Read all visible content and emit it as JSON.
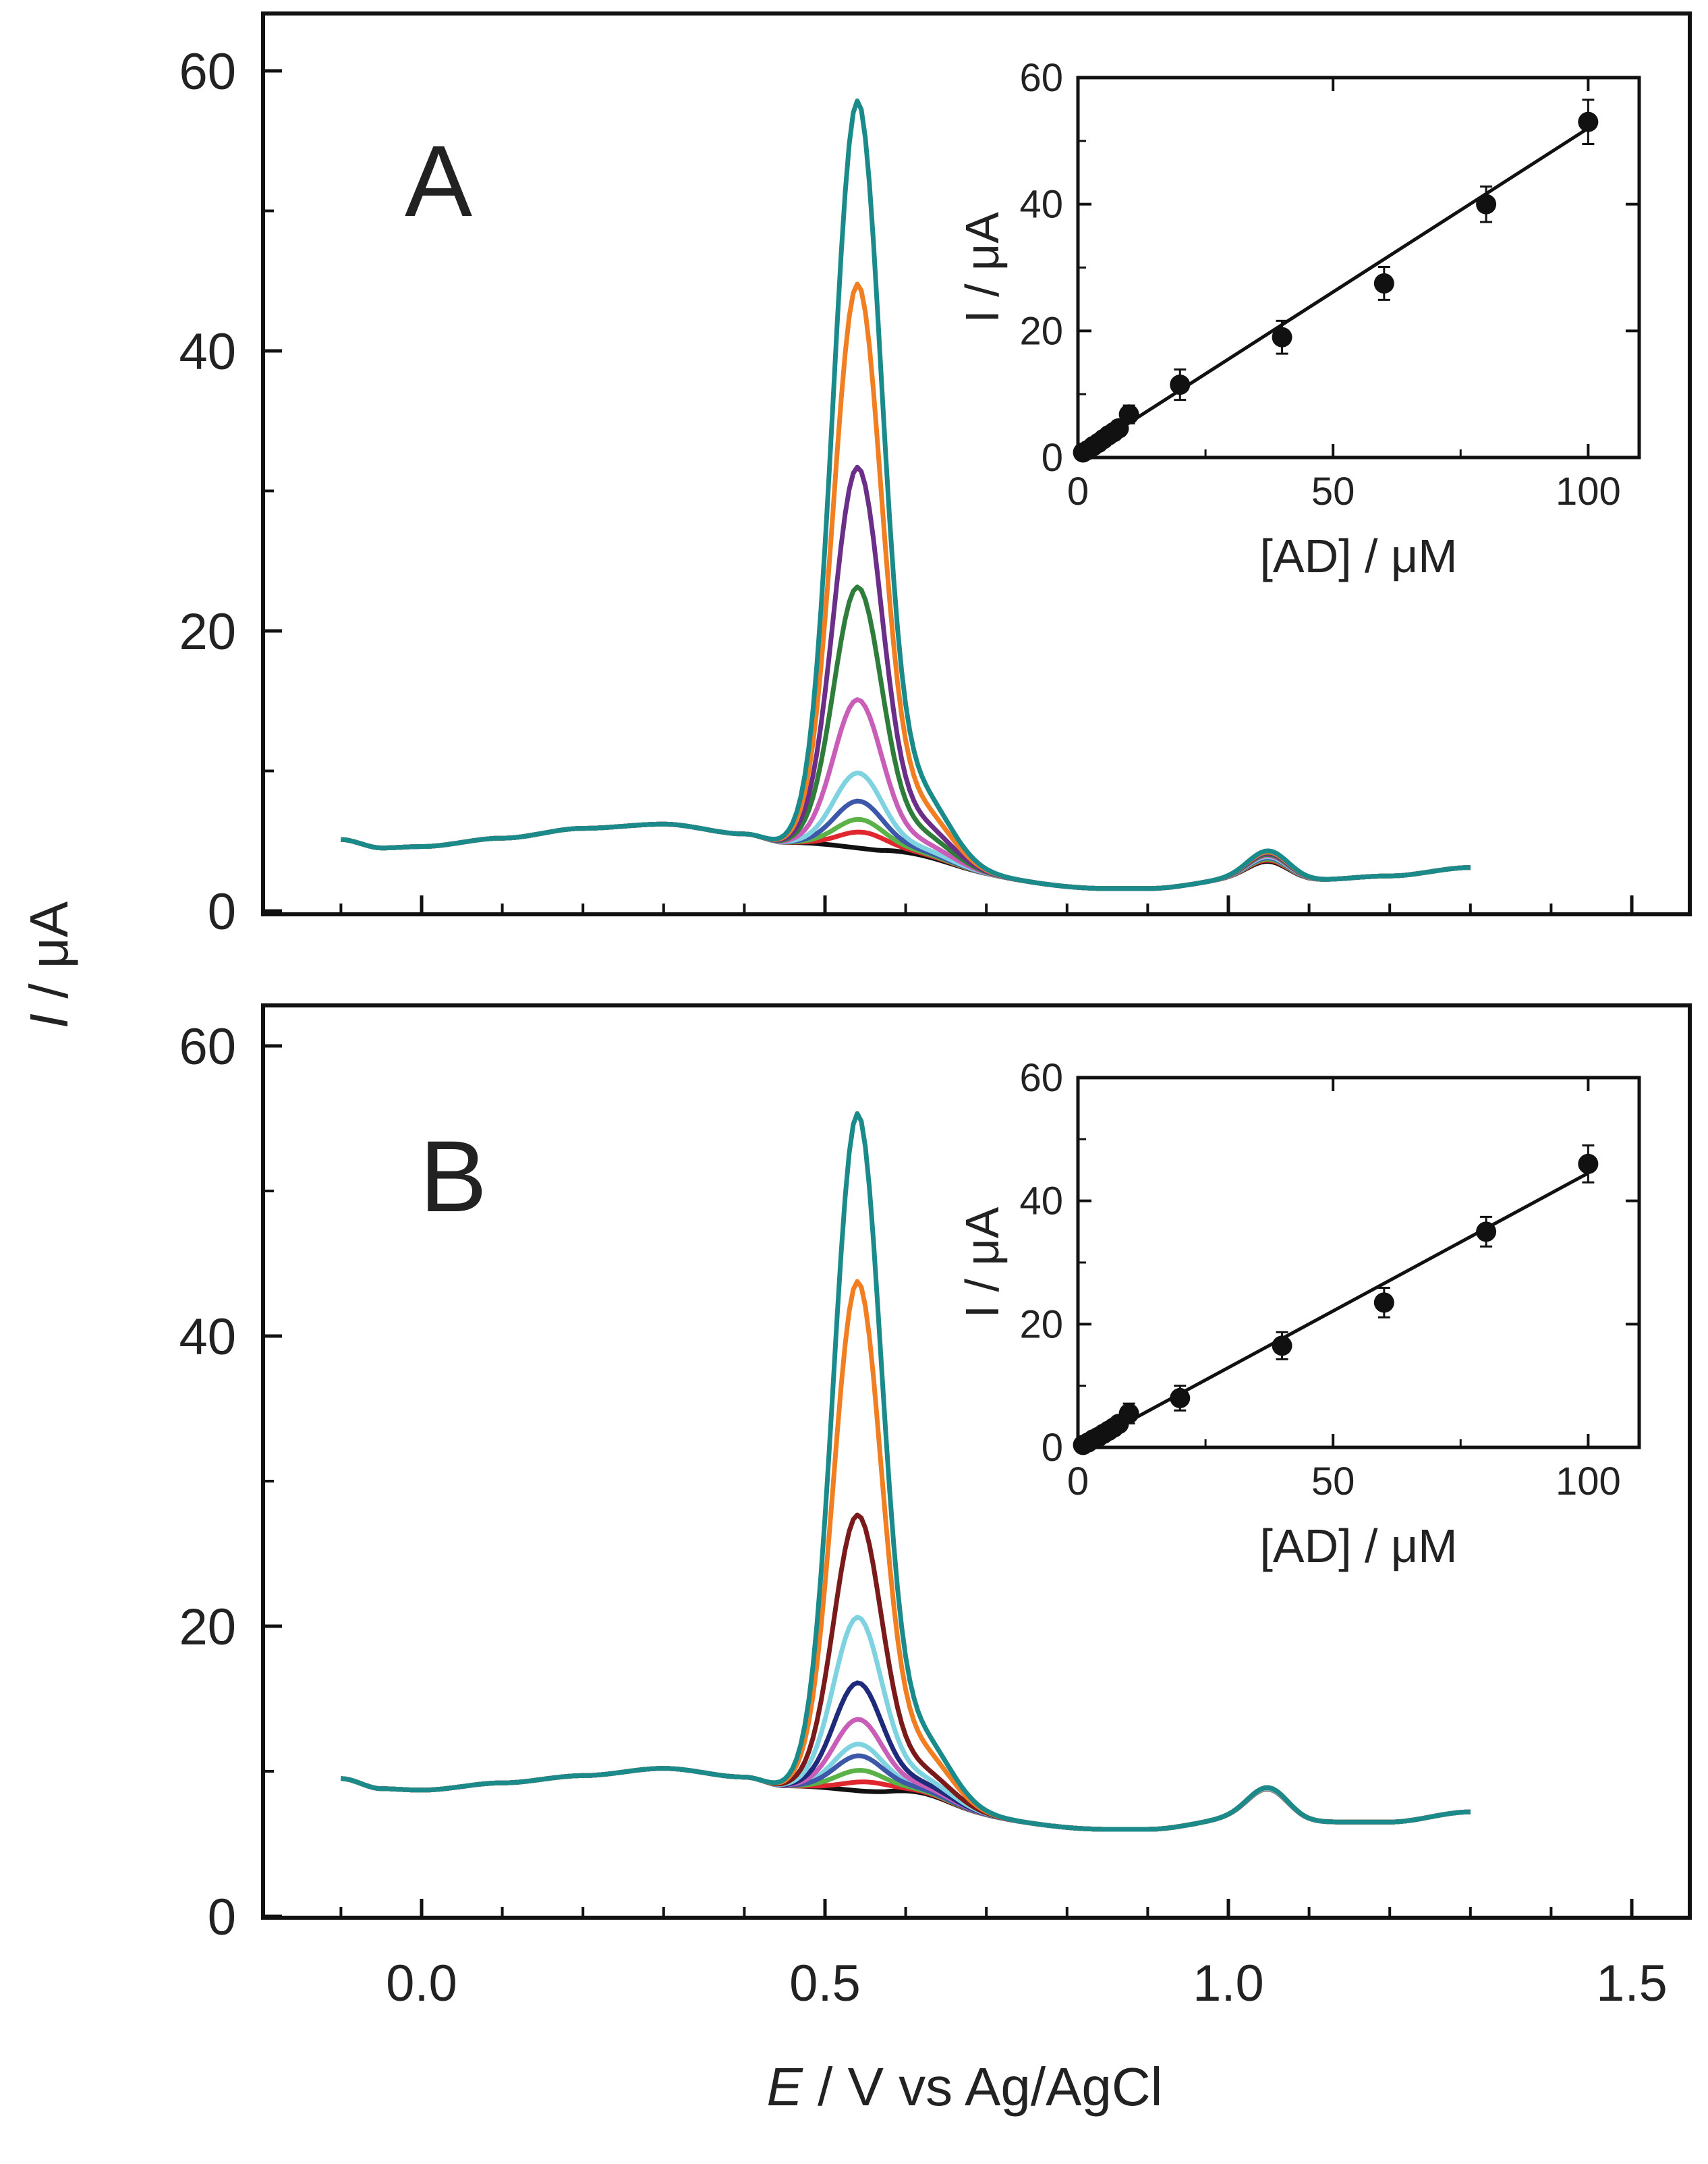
{
  "figure": {
    "ylabel_var": "I",
    "ylabel_unit": " / μA",
    "xlabel_var": "E",
    "xlabel_unit": " / V vs Ag/AgCl"
  },
  "chart_data": [
    {
      "type": "line",
      "panel": "A",
      "xlabel": "E / V vs Ag/AgCl",
      "ylabel": "I / μA",
      "xlim": [
        -0.2,
        1.55
      ],
      "ylim": [
        0,
        63
      ],
      "xticks": [
        "0.0",
        "0.5",
        "1.0",
        "1.5"
      ],
      "yticks": [
        "0",
        "20",
        "40",
        "60"
      ],
      "baseline_features": {
        "points_x": [
          -0.1,
          -0.05,
          0.0,
          0.1,
          0.2,
          0.3,
          0.4,
          0.45,
          0.85,
          0.9,
          1.03,
          1.1,
          1.2,
          1.3
        ],
        "points_y": [
          5.1,
          4.5,
          4.6,
          5.2,
          5.9,
          6.2,
          5.5,
          4.9,
          1.6,
          1.6,
          2.4,
          2.2,
          2.5,
          3.1
        ]
      },
      "peak_position": 0.54,
      "series": [
        {
          "color": "#111111",
          "peak_height": 4.2,
          "second_peak": 3.0
        },
        {
          "color": "#e0262e",
          "peak_height": 5.6,
          "second_peak": 3.1
        },
        {
          "color": "#5bb247",
          "peak_height": 6.5,
          "second_peak": 3.2
        },
        {
          "color": "#3d58a8",
          "peak_height": 7.8,
          "second_peak": 3.3
        },
        {
          "color": "#7fd3e0",
          "peak_height": 9.8,
          "second_peak": 3.4
        },
        {
          "color": "#c95eb8",
          "peak_height": 15.0,
          "second_peak": 3.5
        },
        {
          "color": "#2f7d3a",
          "peak_height": 23.0,
          "second_peak": 3.6
        },
        {
          "color": "#6b2f8a",
          "peak_height": 31.5,
          "second_peak": 3.7
        },
        {
          "color": "#f27e22",
          "peak_height": 44.5,
          "second_peak": 3.8
        },
        {
          "color": "#1a8a8a",
          "peak_height": 57.5,
          "second_peak": 3.9
        }
      ],
      "inset": {
        "type": "scatter",
        "xlabel": "[AD] / μM",
        "ylabel": "I / μA",
        "xlim": [
          0,
          110
        ],
        "ylim": [
          0,
          60
        ],
        "xticks": [
          "0",
          "50",
          "100"
        ],
        "yticks": [
          "0",
          "20",
          "40",
          "60"
        ],
        "x": [
          1,
          2,
          3,
          4,
          5,
          6,
          7,
          8,
          10,
          20,
          40,
          60,
          80,
          100
        ],
        "y": [
          0.8,
          1.2,
          1.8,
          2.3,
          2.9,
          3.5,
          4.0,
          4.6,
          6.8,
          11.5,
          19.0,
          27.5,
          40.0,
          53.0
        ],
        "yerr": [
          0.5,
          0.6,
          0.7,
          0.8,
          0.9,
          1.0,
          1.1,
          1.2,
          1.4,
          2.4,
          2.6,
          2.6,
          2.8,
          3.5
        ],
        "fit": {
          "x": [
            1,
            100
          ],
          "y": [
            0.8,
            52.0
          ]
        }
      }
    },
    {
      "type": "line",
      "panel": "B",
      "xlabel": "E / V vs Ag/AgCl",
      "ylabel": "I / μA",
      "xlim": [
        -0.2,
        1.55
      ],
      "ylim": [
        0,
        63
      ],
      "xticks": [
        "0.0",
        "0.5",
        "1.0",
        "1.5"
      ],
      "yticks": [
        "0",
        "20",
        "40",
        "60"
      ],
      "baseline_features": {
        "points_x": [
          -0.1,
          -0.05,
          0.0,
          0.1,
          0.2,
          0.3,
          0.4,
          0.45,
          0.85,
          0.9,
          1.03,
          1.1,
          1.2,
          1.3
        ],
        "points_y": [
          9.5,
          8.8,
          8.7,
          9.2,
          9.7,
          10.2,
          9.6,
          9.0,
          6.0,
          6.0,
          6.9,
          6.5,
          6.5,
          7.2
        ]
      },
      "peak_position": 0.54,
      "series": [
        {
          "color": "#111111",
          "peak_height": 8.3,
          "second_peak": 7.0
        },
        {
          "color": "#e0262e",
          "peak_height": 9.2,
          "second_peak": 7.0
        },
        {
          "color": "#5bb247",
          "peak_height": 10.0,
          "second_peak": 7.0
        },
        {
          "color": "#7fd3e0",
          "peak_height": 11.8,
          "second_peak": 7.1
        },
        {
          "color": "#3d58a8",
          "peak_height": 11.0,
          "second_peak": 7.1
        },
        {
          "color": "#c95eb8",
          "peak_height": 13.5,
          "second_peak": 7.1
        },
        {
          "color": "#1f2a7a",
          "peak_height": 16.0,
          "second_peak": 7.2
        },
        {
          "color": "#7fd3e0",
          "peak_height": 20.5,
          "second_peak": 7.2
        },
        {
          "color": "#7a1a1a",
          "peak_height": 27.5,
          "second_peak": 7.3
        },
        {
          "color": "#f27e22",
          "peak_height": 43.5,
          "second_peak": 7.3
        },
        {
          "color": "#1a8a8a",
          "peak_height": 55.0,
          "second_peak": 7.3
        }
      ],
      "inset": {
        "type": "scatter",
        "xlabel": "[AD] / μM",
        "ylabel": "I / μA",
        "xlim": [
          0,
          110
        ],
        "ylim": [
          0,
          60
        ],
        "xticks": [
          "0",
          "50",
          "100"
        ],
        "yticks": [
          "0",
          "20",
          "40",
          "60"
        ],
        "x": [
          1,
          2,
          3,
          4,
          5,
          6,
          7,
          8,
          10,
          20,
          40,
          60,
          80,
          100
        ],
        "y": [
          0.4,
          0.8,
          1.3,
          1.7,
          2.2,
          2.7,
          3.2,
          3.8,
          5.5,
          8.0,
          16.5,
          23.5,
          35.0,
          46.0
        ],
        "yerr": [
          0.5,
          0.6,
          0.7,
          0.8,
          0.9,
          1.0,
          1.1,
          1.2,
          1.6,
          2.0,
          2.2,
          2.4,
          2.4,
          3.0
        ],
        "fit": {
          "x": [
            1,
            100
          ],
          "y": [
            0.2,
            44.5
          ]
        }
      }
    }
  ]
}
